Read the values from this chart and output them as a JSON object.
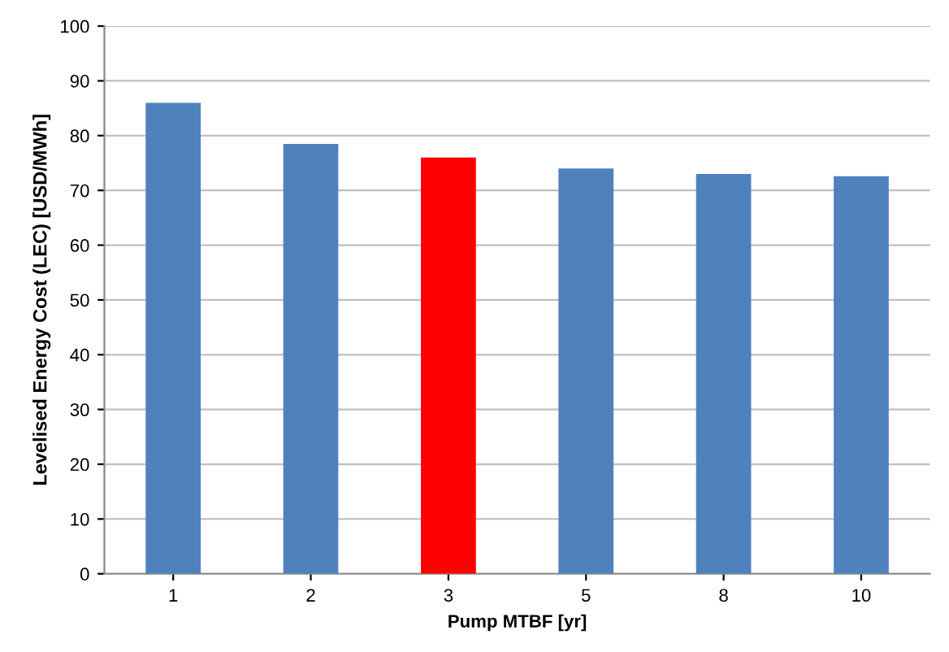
{
  "chart_data": {
    "type": "bar",
    "xlabel": "Pump MTBF [yr]",
    "ylabel": "Levelised Energy Cost (LEC) [USD/MWh]",
    "categories": [
      "1",
      "2",
      "3",
      "5",
      "8",
      "10"
    ],
    "values": [
      86,
      78.5,
      76,
      74,
      73,
      72.6
    ],
    "colors": [
      "#4f81bd",
      "#4f81bd",
      "#ff0000",
      "#4f81bd",
      "#4f81bd",
      "#4f81bd"
    ],
    "ylim": [
      0,
      100
    ],
    "yticks": [
      0,
      10,
      20,
      30,
      40,
      50,
      60,
      70,
      80,
      90,
      100
    ],
    "grid": "y",
    "legend": false
  }
}
